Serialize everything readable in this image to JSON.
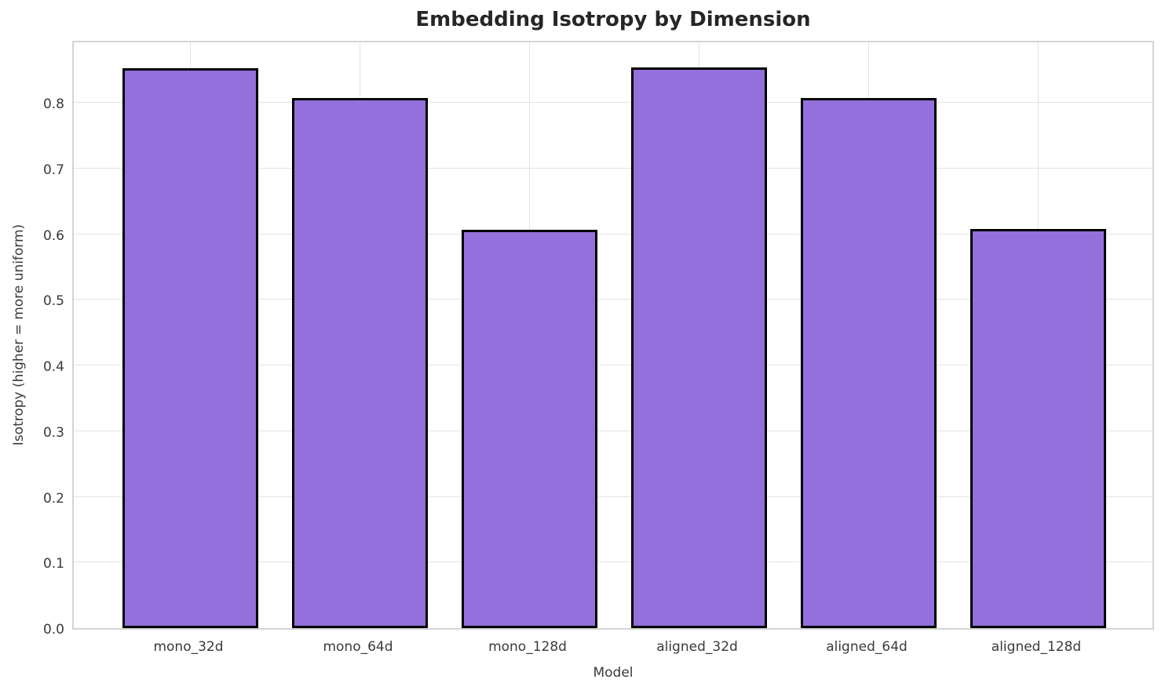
{
  "chart_data": {
    "type": "bar",
    "title": "Embedding Isotropy by Dimension",
    "xlabel": "Model",
    "ylabel": "Isotropy (higher = more uniform)",
    "categories": [
      "mono_32d",
      "mono_64d",
      "mono_128d",
      "aligned_32d",
      "aligned_64d",
      "aligned_128d"
    ],
    "values": [
      0.853,
      0.807,
      0.607,
      0.854,
      0.807,
      0.608
    ],
    "ylim": [
      0,
      0.897
    ],
    "yticks": [
      0.0,
      0.1,
      0.2,
      0.3,
      0.4,
      0.5,
      0.6,
      0.7,
      0.8
    ],
    "grid": "both",
    "legend": "none",
    "colors": {
      "bar_fill": "#9370DB",
      "bar_edge": "#000000",
      "grid": "#e3e3e3",
      "spine": "#d4d4d4",
      "title_text": "#262626",
      "tick_text": "#3a3a3a",
      "background": "#ffffff"
    }
  }
}
